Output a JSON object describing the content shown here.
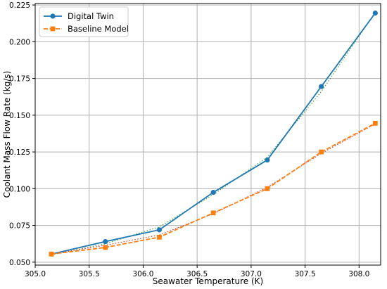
{
  "chart_data": {
    "type": "line",
    "title": "",
    "xlabel": "Seawater Temperature (K)",
    "ylabel": "Coolant Mass Flow Rate (kg/s)",
    "xlim": [
      305.0,
      308.2
    ],
    "ylim": [
      0.048,
      0.226
    ],
    "xticks": [
      305.0,
      305.5,
      306.0,
      306.5,
      307.0,
      307.5,
      308.0
    ],
    "xtick_labels": [
      "305.0",
      "305.5",
      "306.0",
      "306.5",
      "307.0",
      "307.5",
      "308.0"
    ],
    "yticks": [
      0.05,
      0.075,
      0.1,
      0.125,
      0.15,
      0.175,
      0.2,
      0.225
    ],
    "ytick_labels": [
      "0.050",
      "0.075",
      "0.100",
      "0.125",
      "0.150",
      "0.175",
      "0.200",
      "0.225"
    ],
    "grid": true,
    "legend_position": "top-left",
    "x": [
      305.15,
      305.65,
      306.15,
      306.65,
      307.15,
      307.65,
      308.15
    ],
    "series": [
      {
        "name": "Digital Twin",
        "values": [
          0.0555,
          0.064,
          0.072,
          0.0975,
          0.1195,
          0.1695,
          0.2195
        ],
        "color": "#1f77b4",
        "marker": "circle",
        "linestyle": "solid"
      },
      {
        "name": "Baseline Model",
        "values": [
          0.0555,
          0.06,
          0.067,
          0.0835,
          0.1,
          0.125,
          0.1445
        ],
        "color": "#ff7f0e",
        "marker": "square",
        "linestyle": "dashed"
      }
    ],
    "overlays": [
      {
        "values": [
          0.055,
          0.0625,
          0.074,
          0.096,
          0.1215,
          0.166,
          0.22
        ],
        "color": "#2ca02c",
        "linestyle": "dotted"
      },
      {
        "values": [
          0.0555,
          0.0615,
          0.0685,
          0.083,
          0.101,
          0.124,
          0.144
        ],
        "color": "#d62728",
        "linestyle": "dotted"
      }
    ]
  }
}
